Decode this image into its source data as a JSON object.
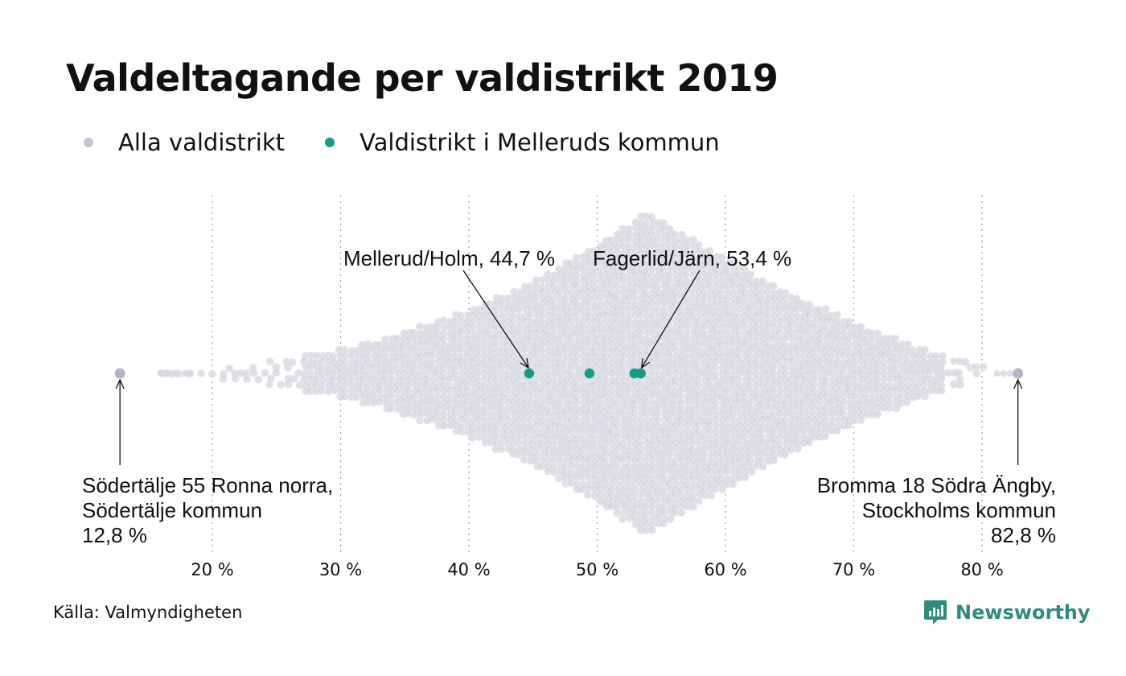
{
  "title": "Valdeltagande per valdistrikt 2019",
  "legend": [
    {
      "label": "Alla valdistrikt",
      "color": "#c4c4d2"
    },
    {
      "label": "Valdistrikt i Melleruds kommun",
      "color": "#19998a"
    }
  ],
  "source": "Källa: Valmyndigheten",
  "brand": {
    "name": "Newsworthy",
    "icon": "newsworthy-logo-icon",
    "color": "#2f8b7e"
  },
  "chart_data": {
    "type": "scatter",
    "title": "Valdeltagande per valdistrikt 2019",
    "xlabel": "",
    "ylabel": "",
    "xlim": [
      10,
      85
    ],
    "x_ticks": [
      20,
      30,
      40,
      50,
      60,
      70,
      80
    ],
    "x_tick_labels": [
      "20 %",
      "30 %",
      "40 %",
      "50 %",
      "60 %",
      "70 %",
      "80 %"
    ],
    "grid": "vertical dotted",
    "series": [
      {
        "name": "Alla valdistrikt",
        "color": "#c4c4d2",
        "mode": "beeswarm",
        "min": 12.8,
        "max": 82.8,
        "peak": 53.9
      },
      {
        "name": "Valdistrikt i Melleruds kommun",
        "color": "#19998a",
        "values": [
          44.7,
          49.4,
          52.9,
          53.4
        ]
      }
    ],
    "annotations": [
      {
        "lines": [
          "Mellerud/Holm, 44,7 %"
        ],
        "x": 44.7
      },
      {
        "lines": [
          "Fagerlid/Järn, 53,4 %"
        ],
        "x": 53.4
      },
      {
        "lines": [
          "Södertälje 55 Ronna norra,",
          "Södertälje kommun",
          "12,8 %"
        ],
        "x": 12.8
      },
      {
        "lines": [
          "Bromma 18 Södra Ängby,",
          "Stockholms kommun",
          "82,8 %"
        ],
        "x": 82.8
      }
    ]
  }
}
